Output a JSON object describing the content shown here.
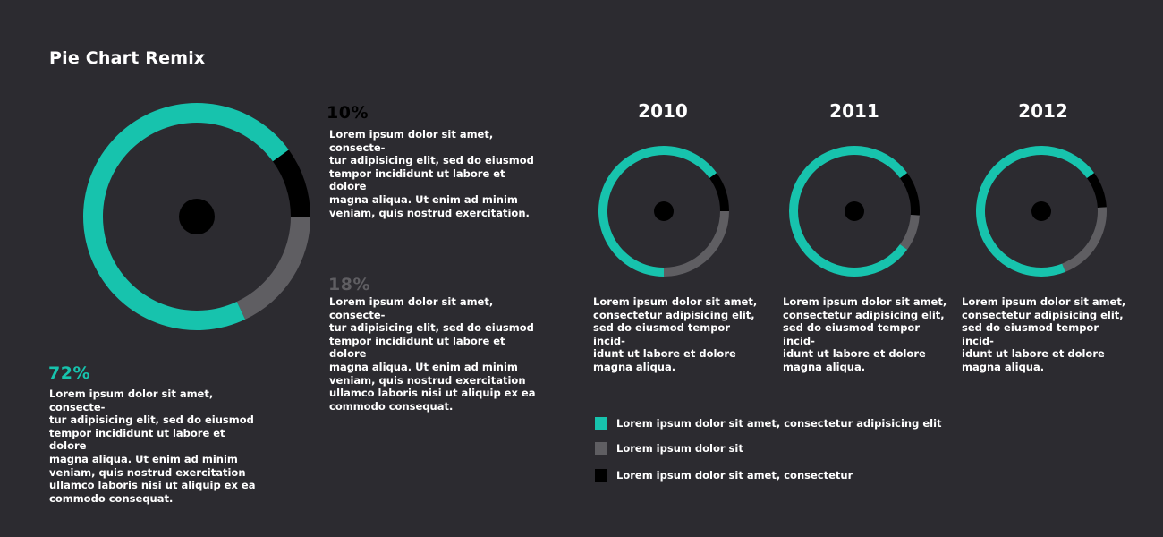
{
  "title": "Pie Chart Remix",
  "colors": {
    "background": "#2c2b30",
    "teal": "#17c3ad",
    "gray": "#5f5e62",
    "black": "#000000",
    "text": "#ffffff"
  },
  "callouts": [
    {
      "pct": "10%",
      "text": "Lorem ipsum dolor sit amet, consecte-\ntur adipisicing elit, sed do eiusmod\ntempor incididunt ut labore et dolore\nmagna aliqua. Ut enim ad minim\nveniam, quis nostrud exercitation."
    },
    {
      "pct": "18%",
      "text": "Lorem ipsum dolor sit amet, consecte-\ntur adipisicing elit, sed do eiusmod\ntempor incididunt ut labore et dolore\nmagna aliqua. Ut enim ad minim\nveniam, quis nostrud exercitation\nullamco laboris nisi ut aliquip ex ea\ncommodo consequat."
    },
    {
      "pct": "72%",
      "text": "Lorem ipsum dolor sit amet, consecte-\ntur adipisicing elit, sed do eiusmod\ntempor incididunt ut labore et dolore\nmagna aliqua. Ut enim ad minim\nveniam, quis nostrud exercitation\nullamco laboris nisi ut aliquip ex ea\ncommodo consequat."
    }
  ],
  "years": [
    {
      "label": "2010",
      "text": "Lorem ipsum dolor sit amet,\nconsectetur adipisicing elit,\nsed do eiusmod tempor incid-\nidunt ut labore et dolore\nmagna aliqua."
    },
    {
      "label": "2011",
      "text": "Lorem ipsum dolor sit amet,\nconsectetur adipisicing elit,\nsed do eiusmod tempor incid-\nidunt ut labore et dolore\nmagna aliqua."
    },
    {
      "label": "2012",
      "text": "Lorem ipsum dolor sit amet,\nconsectetur adipisicing elit,\nsed do eiusmod tempor incid-\nidunt ut labore et dolore\nmagna aliqua."
    }
  ],
  "legend": [
    {
      "label": "Lorem ipsum dolor sit amet, consectetur adipisicing elit",
      "color": "#17c3ad"
    },
    {
      "label": "Lorem ipsum dolor sit",
      "color": "#5f5e62"
    },
    {
      "label": "Lorem ipsum dolor sit amet, consectetur",
      "color": "#000000"
    }
  ],
  "chart_data": [
    {
      "type": "pie",
      "title": "Pie Chart Remix",
      "slices": [
        {
          "label": "10%",
          "value": 10,
          "color": "#000000"
        },
        {
          "label": "18%",
          "value": 18,
          "color": "#5f5e62"
        },
        {
          "label": "72%",
          "value": 72,
          "color": "#17c3ad"
        }
      ]
    },
    {
      "type": "pie",
      "title": "2010",
      "slices": [
        {
          "value": 10,
          "color": "#000000"
        },
        {
          "value": 25,
          "color": "#5f5e62"
        },
        {
          "value": 65,
          "color": "#17c3ad"
        }
      ]
    },
    {
      "type": "pie",
      "title": "2011",
      "slices": [
        {
          "value": 11,
          "color": "#000000"
        },
        {
          "value": 9,
          "color": "#5f5e62"
        },
        {
          "value": 80,
          "color": "#17c3ad"
        }
      ]
    },
    {
      "type": "pie",
      "title": "2012",
      "slices": [
        {
          "value": 9,
          "color": "#000000"
        },
        {
          "value": 20,
          "color": "#5f5e62"
        },
        {
          "value": 71,
          "color": "#17c3ad"
        }
      ]
    }
  ]
}
